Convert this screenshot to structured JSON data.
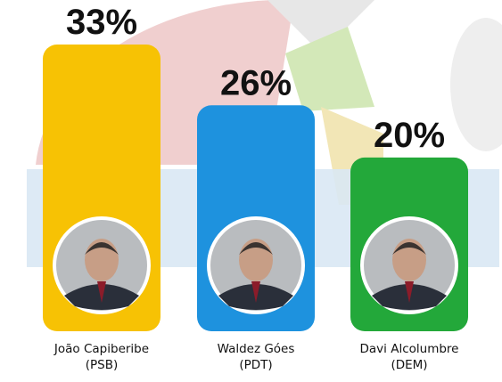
{
  "chart_data": {
    "type": "bar",
    "categories": [
      "João Capiberibe (PSB)",
      "Waldez Góes (PDT)",
      "Davi Alcolumbre (DEM)"
    ],
    "values": [
      33,
      26,
      20
    ],
    "value_labels": [
      "33%",
      "26%",
      "20%"
    ],
    "candidates": [
      {
        "name": "João Capiberibe",
        "party": "(PSB)",
        "color": "#F7C204"
      },
      {
        "name": "Waldez Góes",
        "party": "(PDT)",
        "color": "#1E92DE"
      },
      {
        "name": "Davi Alcolumbre",
        "party": "(DEM)",
        "color": "#23A83A"
      }
    ],
    "unit": "%",
    "grid": false,
    "legend": "none"
  }
}
